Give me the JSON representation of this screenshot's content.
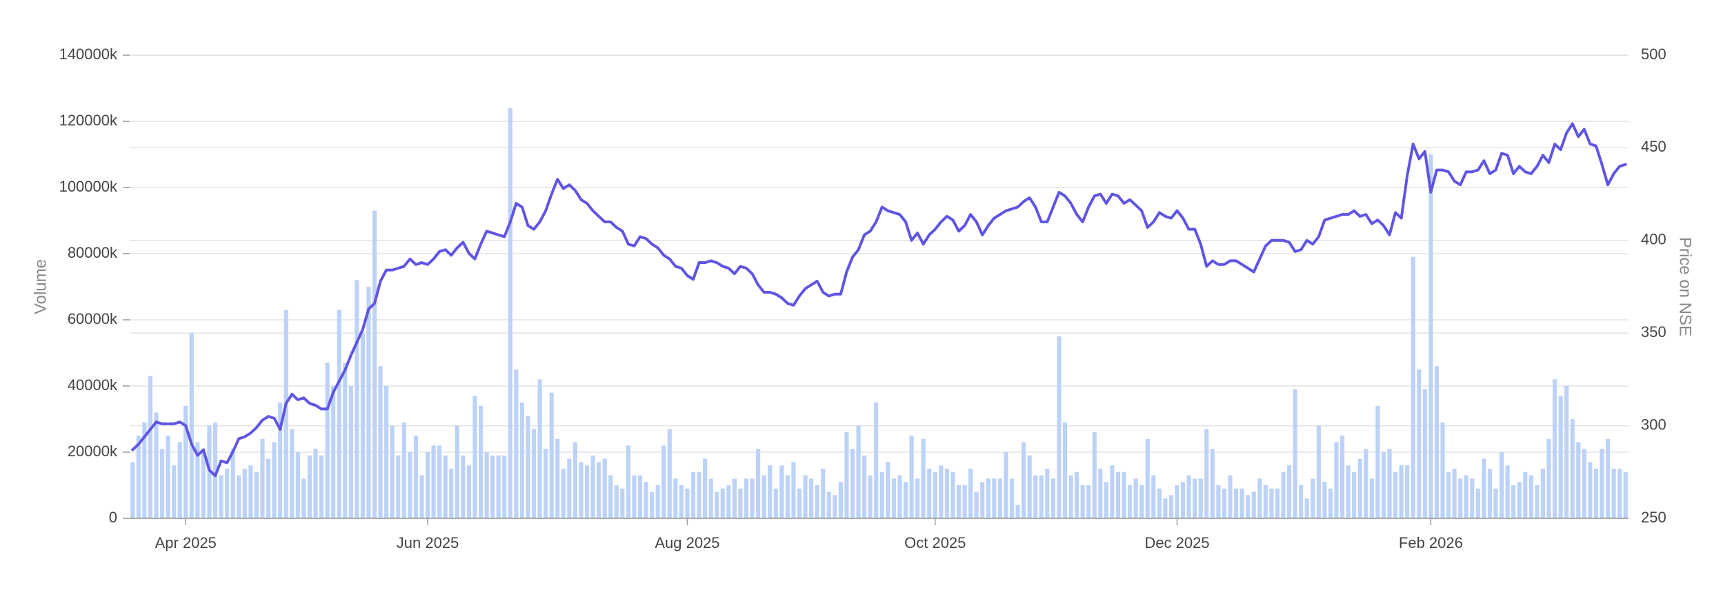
{
  "chart_data": {
    "type": "bar",
    "y_label": "Volume",
    "y2_label": "Price on NSE",
    "categories": [
      null,
      null,
      null,
      null,
      null,
      null,
      null,
      null,
      null,
      "Apr 2025",
      null,
      null,
      null,
      null,
      null,
      null,
      null,
      null,
      null,
      null,
      null,
      null,
      null,
      null,
      null,
      null,
      null,
      null,
      null,
      null,
      null,
      null,
      null,
      null,
      null,
      null,
      null,
      null,
      null,
      null,
      null,
      null,
      null,
      null,
      null,
      null,
      null,
      null,
      null,
      null,
      "Jun 2025",
      null,
      null,
      null,
      null,
      null,
      null,
      null,
      null,
      null,
      null,
      null,
      null,
      null,
      null,
      null,
      null,
      null,
      null,
      null,
      null,
      null,
      null,
      null,
      null,
      null,
      null,
      null,
      null,
      null,
      null,
      null,
      null,
      null,
      null,
      null,
      null,
      null,
      null,
      null,
      null,
      null,
      null,
      null,
      "Aug 2025",
      null,
      null,
      null,
      null,
      null,
      null,
      null,
      null,
      null,
      null,
      null,
      null,
      null,
      null,
      null,
      null,
      null,
      null,
      null,
      null,
      null,
      null,
      null,
      null,
      null,
      null,
      null,
      null,
      null,
      null,
      null,
      null,
      null,
      null,
      null,
      null,
      null,
      null,
      null,
      null,
      null,
      "Oct 2025",
      null,
      null,
      null,
      null,
      null,
      null,
      null,
      null,
      null,
      null,
      null,
      null,
      null,
      null,
      null,
      null,
      null,
      null,
      null,
      null,
      null,
      null,
      null,
      null,
      null,
      null,
      null,
      null,
      null,
      null,
      null,
      null,
      null,
      null,
      null,
      null,
      null,
      null,
      null,
      null,
      "Dec 2025",
      null,
      null,
      null,
      null,
      null,
      null,
      null,
      null,
      null,
      null,
      null,
      null,
      null,
      null,
      null,
      null,
      null,
      null,
      null,
      null,
      null,
      null,
      null,
      null,
      null,
      null,
      null,
      null,
      null,
      null,
      null,
      null,
      null,
      null,
      null,
      null,
      null,
      null,
      null,
      null,
      null,
      null,
      "Feb 2026",
      null,
      null,
      null,
      null,
      null,
      null,
      null,
      null,
      null,
      null,
      null,
      null,
      null,
      null,
      null,
      null,
      null,
      null,
      null,
      null,
      null,
      null,
      null,
      null,
      null,
      null,
      null,
      null,
      null,
      null,
      null,
      null,
      null
    ],
    "series": [
      {
        "type": "bar",
        "axis": "y",
        "color": "#bcd2f7",
        "values": [
          17000,
          25000,
          29000,
          43000,
          32000,
          21000,
          25000,
          16000,
          23000,
          34000,
          56000,
          23000,
          20000,
          28000,
          29000,
          13000,
          15000,
          21000,
          13000,
          15000,
          16000,
          14000,
          24000,
          18000,
          23000,
          35000,
          63000,
          27000,
          20000,
          12000,
          19000,
          21000,
          19000,
          47000,
          40000,
          63000,
          47000,
          40000,
          72000,
          56000,
          70000,
          93000,
          46000,
          40000,
          28000,
          19000,
          29000,
          20000,
          25000,
          13000,
          20000,
          22000,
          22000,
          19000,
          15000,
          28000,
          19000,
          16000,
          37000,
          34000,
          20000,
          19000,
          19000,
          19000,
          124000,
          45000,
          35000,
          31000,
          27000,
          42000,
          21000,
          38000,
          24000,
          15000,
          18000,
          23000,
          17000,
          16000,
          19000,
          17000,
          18000,
          13000,
          10000,
          9000,
          22000,
          13000,
          13000,
          11000,
          8000,
          10000,
          22000,
          27000,
          12000,
          10000,
          9000,
          14000,
          14000,
          18000,
          12000,
          8000,
          9000,
          10000,
          12000,
          9000,
          12000,
          12000,
          21000,
          13000,
          16000,
          9000,
          16000,
          13000,
          17000,
          9000,
          13000,
          12000,
          10000,
          15000,
          8000,
          7000,
          11000,
          26000,
          21000,
          28000,
          19000,
          13000,
          35000,
          14000,
          17000,
          12000,
          13000,
          11000,
          25000,
          12000,
          24000,
          15000,
          14000,
          16000,
          15000,
          14000,
          10000,
          10000,
          15000,
          8000,
          11000,
          12000,
          12000,
          12000,
          20000,
          12000,
          4000,
          23000,
          19000,
          13000,
          13000,
          15000,
          12000,
          55000,
          29000,
          13000,
          14000,
          10000,
          10000,
          26000,
          15000,
          11000,
          16000,
          14000,
          14000,
          10000,
          12000,
          10000,
          24000,
          13000,
          9000,
          6000,
          7000,
          10000,
          11000,
          13000,
          12000,
          12000,
          27000,
          21000,
          10000,
          9000,
          13000,
          9000,
          9000,
          7000,
          8000,
          12000,
          10000,
          9000,
          9000,
          14000,
          16000,
          39000,
          10000,
          6000,
          12000,
          28000,
          11000,
          9000,
          23000,
          25000,
          16000,
          14000,
          18000,
          21000,
          12000,
          34000,
          20000,
          21000,
          14000,
          16000,
          16000,
          79000,
          45000,
          39000,
          110000,
          46000,
          29000,
          14000,
          15000,
          12000,
          13000,
          12000,
          9000,
          18000,
          15000,
          9000,
          20000,
          16000,
          10000,
          11000,
          14000,
          13000,
          10000,
          15000,
          24000,
          42000,
          37000,
          40000,
          30000,
          23000,
          21000,
          17000,
          15000,
          21000,
          24000,
          15000,
          15000,
          14000
        ]
      },
      {
        "type": "line",
        "axis": "y2",
        "color": "#5f55e3",
        "values": [
          287,
          290,
          294,
          298,
          302,
          301,
          301,
          301,
          302,
          300,
          290,
          284,
          287,
          276,
          273,
          281,
          280,
          286,
          293,
          294,
          296,
          299,
          303,
          305,
          304,
          298,
          312,
          317,
          314,
          315,
          312,
          311,
          309,
          309,
          318,
          324,
          330,
          338,
          345,
          352,
          363,
          366,
          378,
          384,
          384,
          385,
          386,
          390,
          387,
          388,
          387,
          390,
          394,
          395,
          392,
          396,
          399,
          393,
          390,
          398,
          405,
          404,
          403,
          402,
          410,
          420,
          418,
          408,
          406,
          410,
          416,
          425,
          433,
          428,
          430,
          427,
          422,
          420,
          416,
          413,
          410,
          410,
          407,
          405,
          398,
          397,
          402,
          401,
          398,
          396,
          392,
          390,
          386,
          385,
          381,
          379,
          388,
          388,
          389,
          388,
          386,
          385,
          382,
          386,
          385,
          382,
          376,
          372,
          372,
          371,
          369,
          366,
          365,
          370,
          374,
          376,
          378,
          372,
          370,
          371,
          371,
          383,
          391,
          395,
          403,
          405,
          410,
          418,
          416,
          415,
          414,
          410,
          400,
          404,
          398,
          403,
          406,
          410,
          413,
          411,
          405,
          408,
          414,
          410,
          403,
          408,
          412,
          414,
          416,
          417,
          418,
          421,
          423,
          418,
          410,
          410,
          418,
          426,
          424,
          420,
          414,
          410,
          418,
          424,
          425,
          420,
          425,
          424,
          420,
          422,
          419,
          416,
          407,
          410,
          415,
          413,
          412,
          416,
          412,
          406,
          406,
          398,
          386,
          389,
          387,
          387,
          389,
          389,
          387,
          385,
          383,
          390,
          397,
          400,
          400,
          400,
          399,
          394,
          395,
          400,
          398,
          402,
          411,
          412,
          413,
          414,
          414,
          416,
          413,
          414,
          409,
          411,
          408,
          403,
          415,
          412,
          435,
          452,
          444,
          448,
          426,
          438,
          438,
          437,
          432,
          430,
          437,
          437,
          438,
          443,
          436,
          438,
          447,
          446,
          436,
          440,
          437,
          436,
          440,
          446,
          442,
          452,
          449,
          458,
          463,
          456,
          460,
          452,
          451,
          441,
          430,
          436,
          440,
          441
        ]
      }
    ],
    "ylim": [
      0,
      140000
    ],
    "yticks": [
      0,
      {
        "value": 20000,
        "label": "20000k"
      },
      {
        "value": 40000,
        "label": "40000k"
      },
      {
        "value": 60000,
        "label": "60000k"
      },
      {
        "value": 80000,
        "label": "80000k"
      },
      {
        "value": 100000,
        "label": "100000k"
      },
      {
        "value": 120000,
        "label": "120000k"
      },
      {
        "value": 140000,
        "label": "140000k"
      }
    ],
    "y2lim": [
      250,
      500
    ],
    "y2ticks": [
      250,
      300,
      350,
      400,
      450,
      500
    ],
    "grid": true
  }
}
